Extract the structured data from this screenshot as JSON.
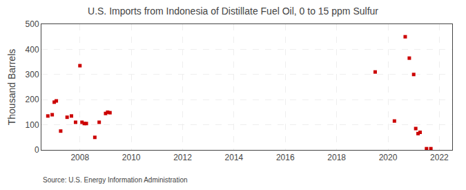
{
  "chart_data": {
    "type": "scatter",
    "title": "U.S. Imports from Indonesia of Distillate Fuel Oil, 0 to 15 ppm Sulfur",
    "y_label": "Thousand Barrels",
    "annotations": [
      "Source: U.S. Energy Information Administration"
    ],
    "x": [
      2006.75,
      2006.92,
      2007.0,
      2007.08,
      2007.25,
      2007.5,
      2007.67,
      2007.83,
      2008.0,
      2008.08,
      2008.17,
      2008.25,
      2008.58,
      2008.75,
      2009.0,
      2009.08,
      2009.17,
      2019.5,
      2020.25,
      2020.67,
      2020.83,
      2021.0,
      2021.08,
      2021.17,
      2021.25,
      2021.5,
      2021.67
    ],
    "values": [
      135,
      140,
      190,
      195,
      75,
      130,
      135,
      110,
      335,
      110,
      105,
      105,
      50,
      110,
      145,
      150,
      148,
      310,
      115,
      450,
      365,
      300,
      85,
      65,
      70,
      5,
      5
    ],
    "color": "#cc0000",
    "marker": "square",
    "xlim": [
      2006.5,
      2022.5
    ],
    "xticks": [
      2008,
      2010,
      2012,
      2014,
      2016,
      2018,
      2020,
      2022
    ],
    "ylim": [
      0,
      500
    ],
    "yticks": [
      0,
      100,
      200,
      300,
      400,
      500
    ],
    "grid": true
  }
}
